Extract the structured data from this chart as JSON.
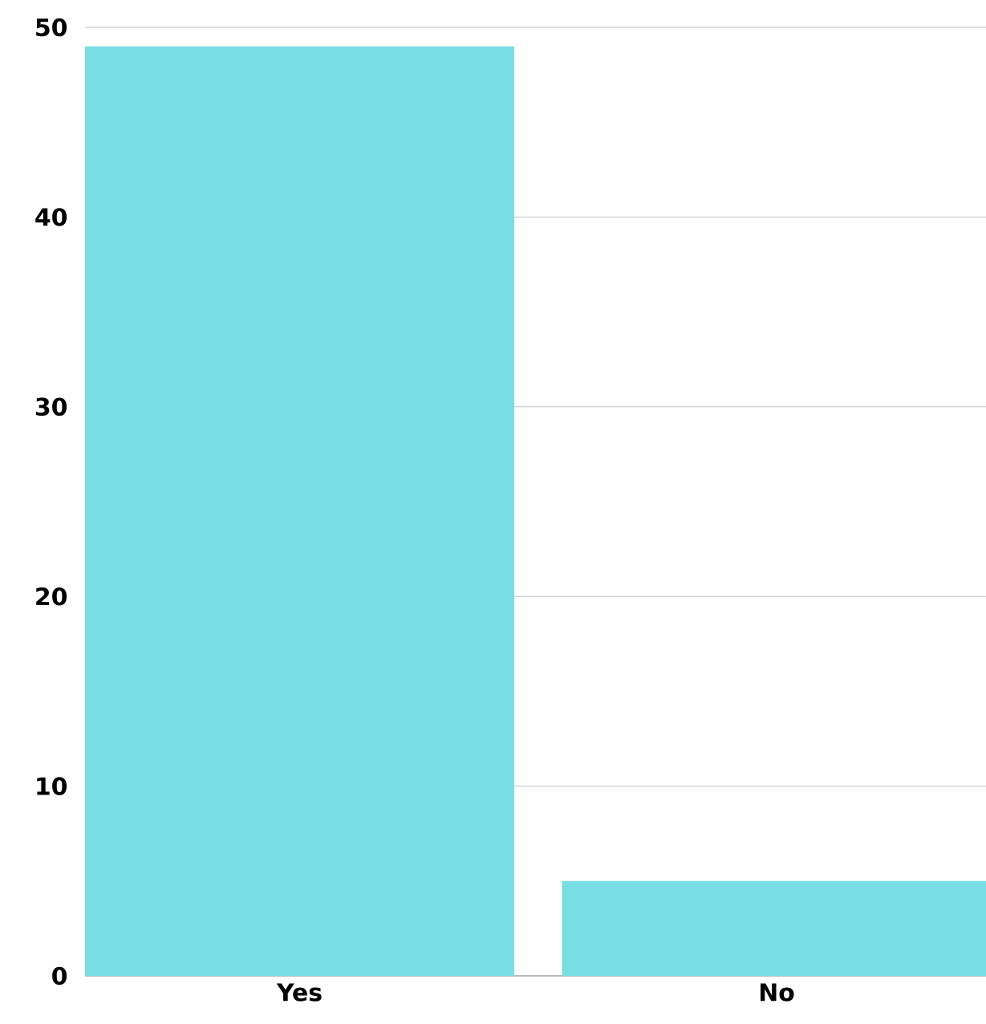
{
  "chart_data": {
    "type": "bar",
    "categories": [
      "Yes",
      "No"
    ],
    "values": [
      49,
      5
    ],
    "color": "#79dde4",
    "ylim": [
      0,
      50
    ],
    "yticks": [
      0,
      10,
      20,
      30,
      40,
      50
    ],
    "grid": "y"
  }
}
